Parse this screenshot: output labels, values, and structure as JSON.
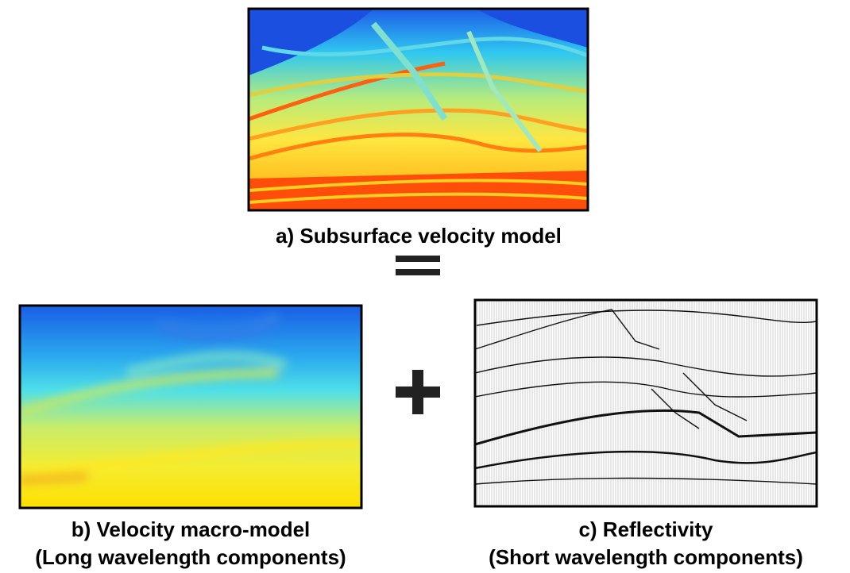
{
  "panel_a": {
    "caption": "a) Subsurface velocity model"
  },
  "panel_b": {
    "caption_lines": [
      "b) Velocity macro-model",
      "(Long wavelength components)"
    ]
  },
  "panel_c": {
    "caption_lines": [
      "c) Reflectivity",
      "(Short wavelength components)"
    ]
  }
}
